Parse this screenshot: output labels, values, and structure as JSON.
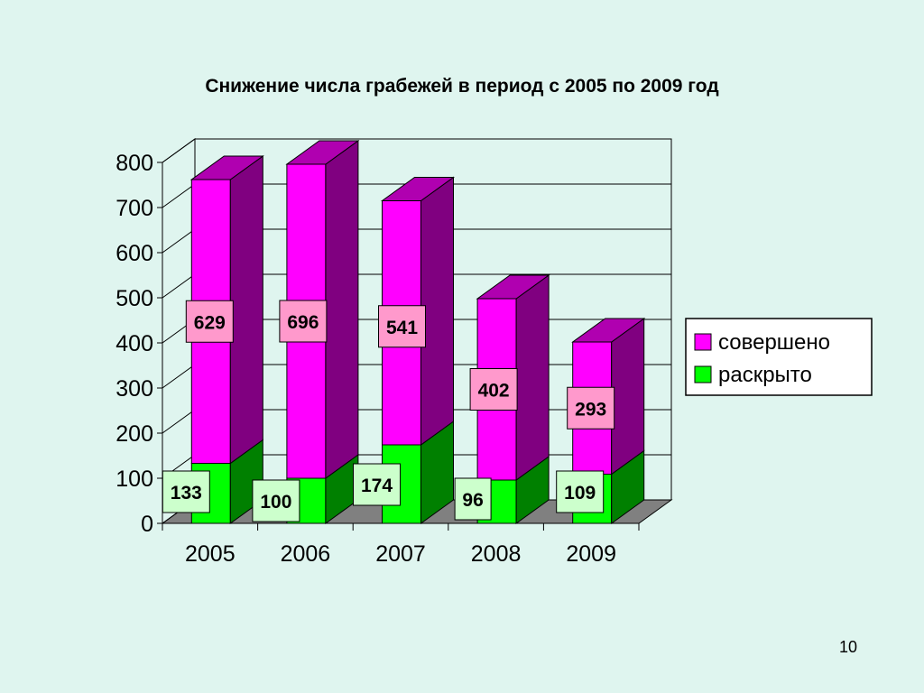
{
  "chart_data": {
    "type": "bar",
    "stacked": true,
    "three_d": true,
    "title": "Снижение числа грабежей в период с 2005 по 2009 год",
    "categories": [
      "2005",
      "2006",
      "2007",
      "2008",
      "2009"
    ],
    "series": [
      {
        "name": "раскрыто",
        "values": [
          133,
          100,
          174,
          96,
          109
        ],
        "color": "#00ff00",
        "side_color": "#008000"
      },
      {
        "name": "совершено",
        "values": [
          629,
          696,
          541,
          402,
          293
        ],
        "color": "#ff00ff",
        "side_color": "#800080"
      }
    ],
    "ylim": [
      0,
      800
    ],
    "yticks": [
      0,
      100,
      200,
      300,
      400,
      500,
      600,
      700,
      800
    ],
    "grid": true,
    "legend_position": "right"
  },
  "colors": {
    "background": "#dff5ef",
    "floor": "#808080",
    "completed_label_bg": "#ff99cc",
    "solved_label_bg": "#ccffcc"
  },
  "page_number": "10"
}
